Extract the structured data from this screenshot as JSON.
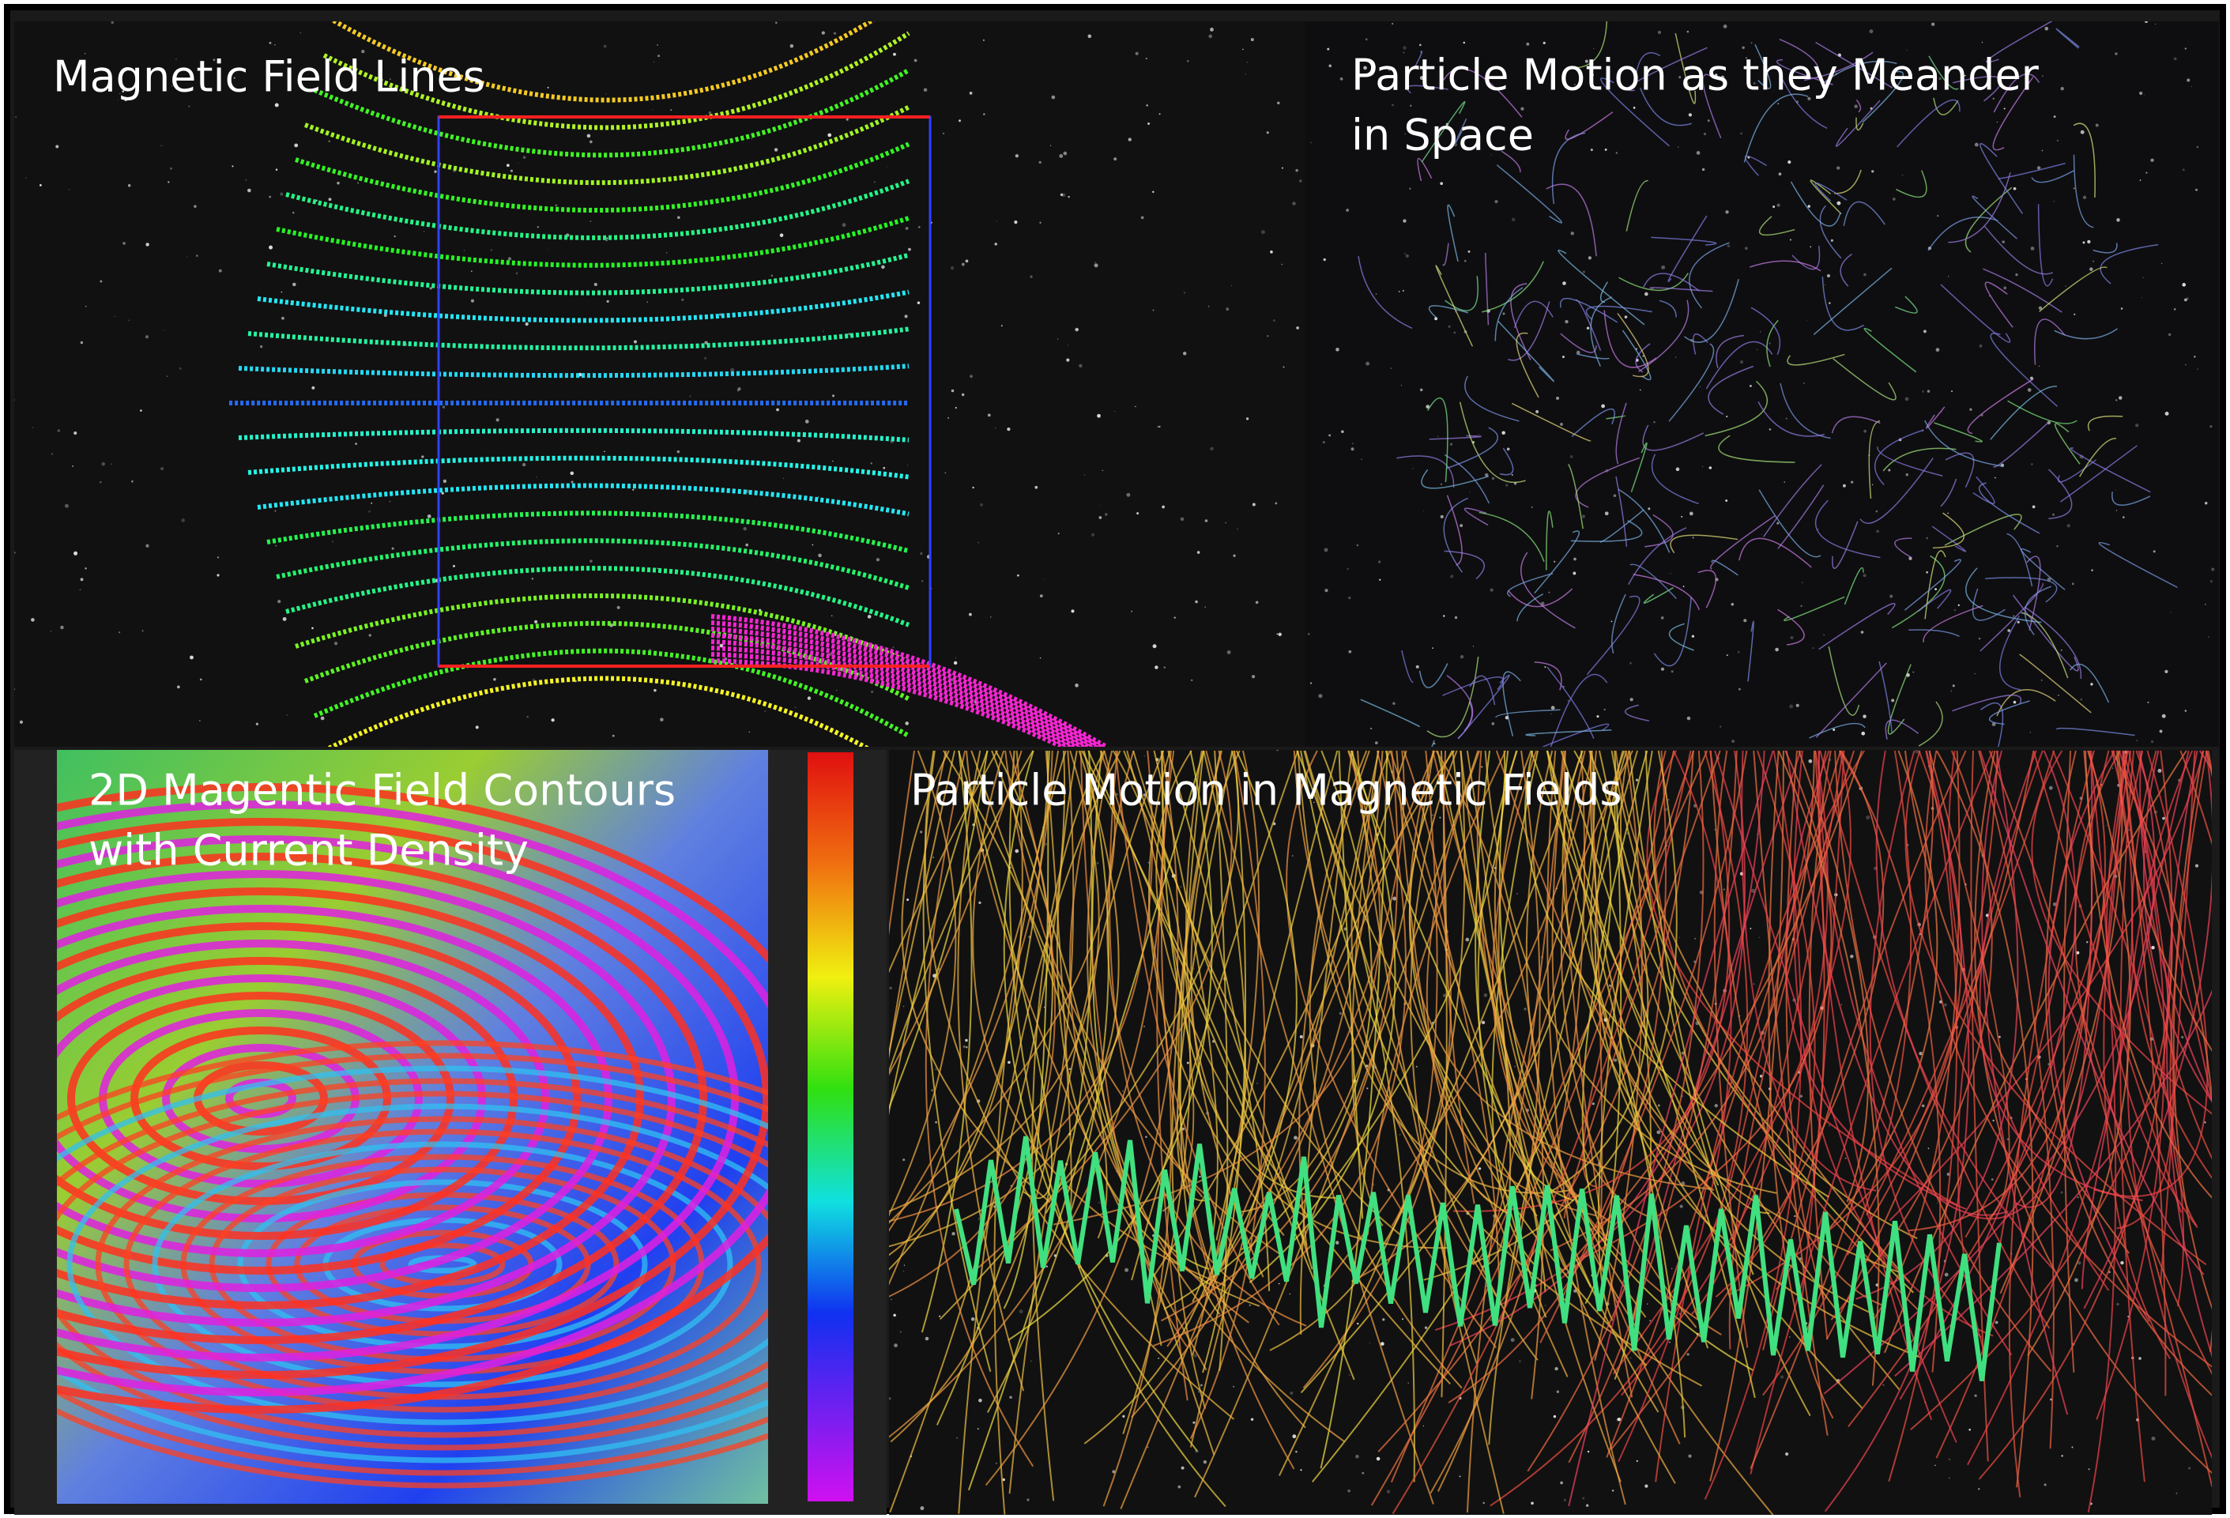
{
  "panels": [
    {
      "title": [
        "Magnetic Field Lines"
      ]
    },
    {
      "title": [
        "Particle Motion as they Meander",
        "in Space"
      ]
    },
    {
      "title": [
        "2D Magentic Field Contours",
        "with Current Density"
      ]
    },
    {
      "title": [
        "Particle Motion in Magnetic Fields"
      ]
    }
  ]
}
